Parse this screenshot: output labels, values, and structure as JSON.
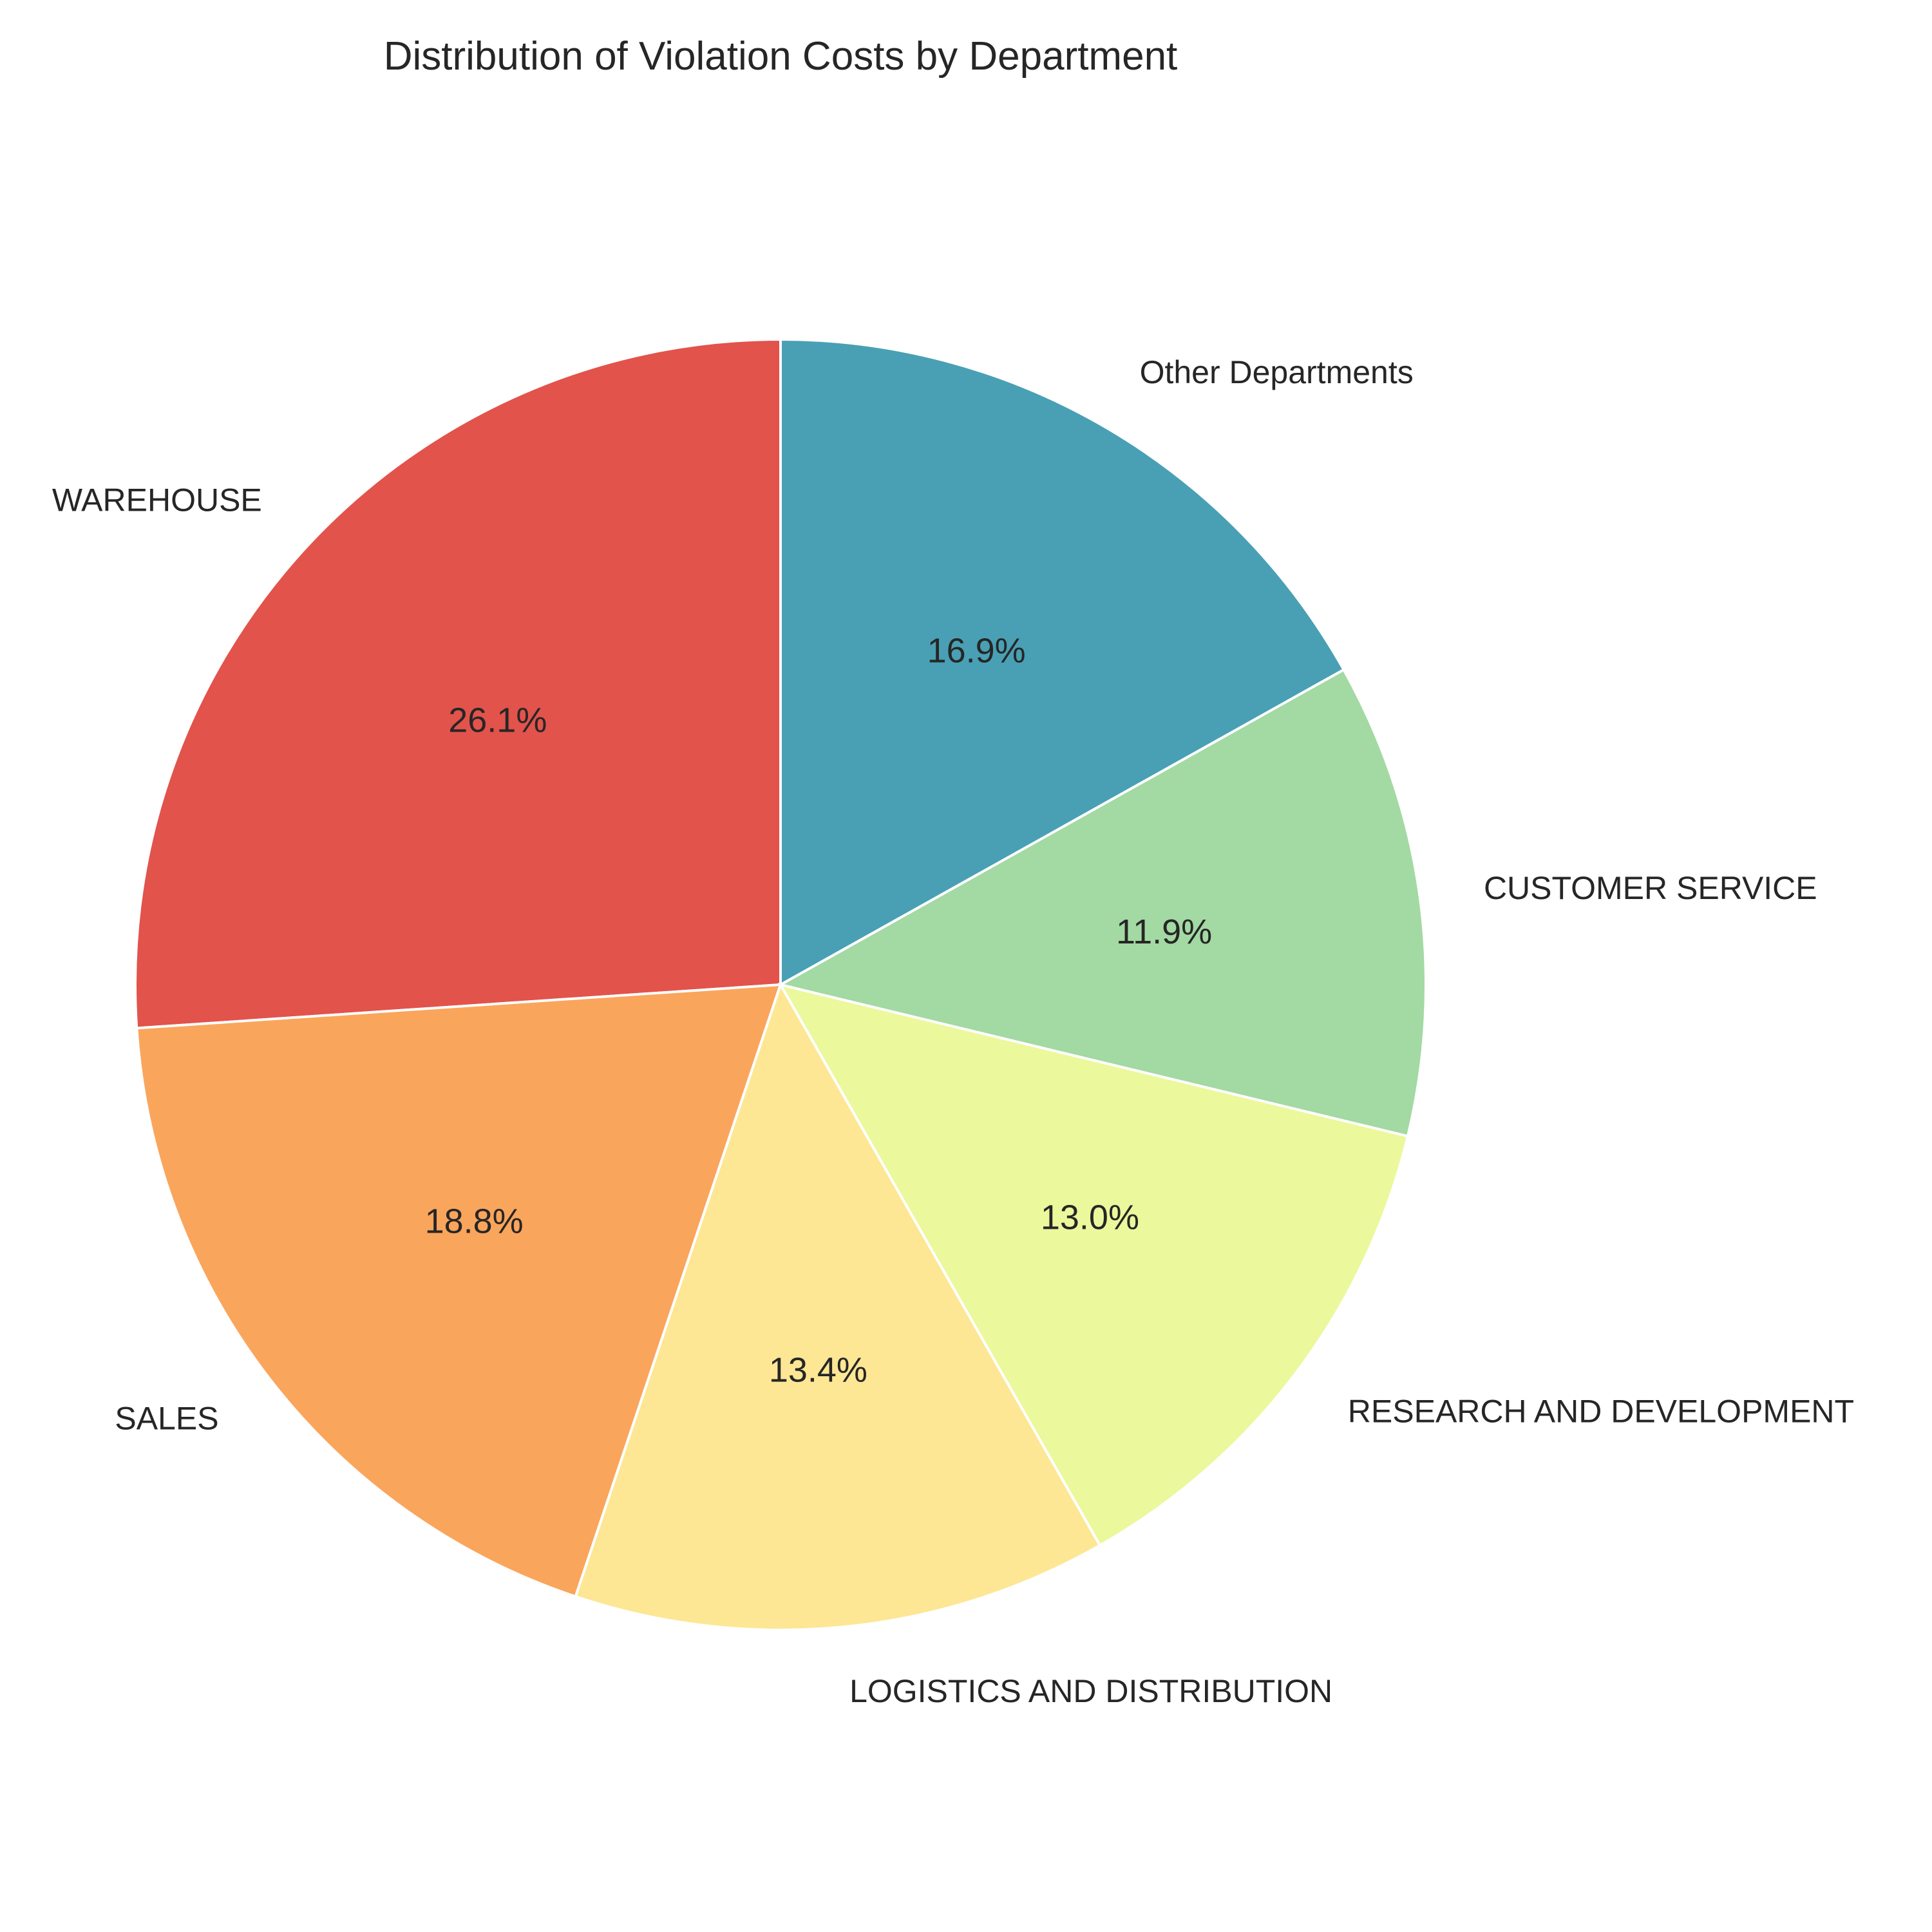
{
  "chart_data": {
    "type": "pie",
    "title": "Distribution of Violation Costs by Department",
    "categories": [
      "WAREHOUSE",
      "SALES",
      "LOGISTICS AND DISTRIBUTION",
      "RESEARCH AND DEVELOPMENT",
      "CUSTOMER SERVICE",
      "Other Departments"
    ],
    "values": [
      26.1,
      18.8,
      13.4,
      13.0,
      11.9,
      16.9
    ],
    "value_labels": [
      "26.1%",
      "18.8%",
      "13.4%",
      "13.0%",
      "11.9%",
      "16.9%"
    ],
    "colors": [
      "#e2534b",
      "#faa55c",
      "#fde795",
      "#ebf89c",
      "#a3d9a3",
      "#49a0b4"
    ],
    "start_angle_deg": 90,
    "direction": "counterclockwise",
    "legend": "none"
  }
}
